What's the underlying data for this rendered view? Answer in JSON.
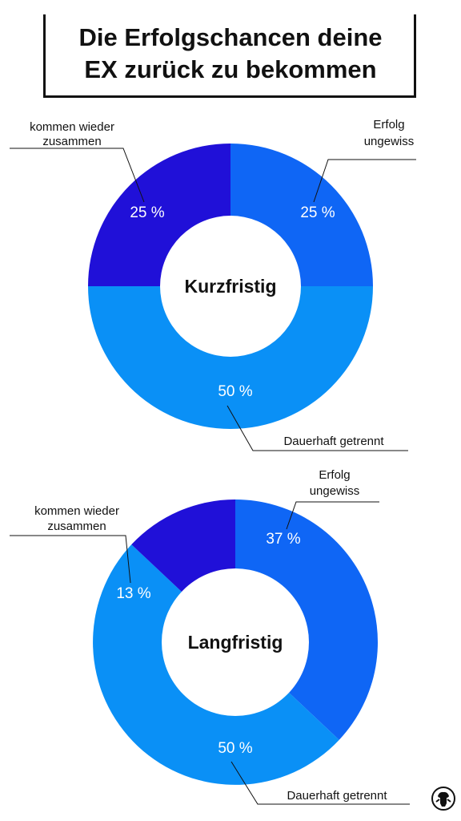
{
  "title": {
    "line1": "Die Erfolgschancen deine",
    "line2": "EX zurück zu bekommen"
  },
  "colors": {
    "together": "#2010d8",
    "uncertain": "#0f66f5",
    "separated": "#0a90f6"
  },
  "chart_data": [
    {
      "type": "pie",
      "title": "Kurzfristig",
      "slices": [
        {
          "label_lines": [
            "Erfolg",
            "ungewiss"
          ],
          "value": 25,
          "value_label": "25 %",
          "color_key": "uncertain"
        },
        {
          "label_lines": [
            "Dauerhaft getrennt"
          ],
          "value": 50,
          "value_label": "50 %",
          "color_key": "separated"
        },
        {
          "label_lines": [
            "kommen wieder",
            "zusammen"
          ],
          "value": 25,
          "value_label": "25 %",
          "color_key": "together"
        }
      ]
    },
    {
      "type": "pie",
      "title": "Langfristig",
      "slices": [
        {
          "label_lines": [
            "Erfolg",
            "ungewiss"
          ],
          "value": 37,
          "value_label": "37 %",
          "color_key": "uncertain"
        },
        {
          "label_lines": [
            "Dauerhaft getrennt"
          ],
          "value": 50,
          "value_label": "50 %",
          "color_key": "separated"
        },
        {
          "label_lines": [
            "kommen wieder",
            "zusammen"
          ],
          "value": 13,
          "value_label": "13 %",
          "color_key": "together"
        }
      ]
    }
  ],
  "logo_icon": "brain-figure-icon"
}
